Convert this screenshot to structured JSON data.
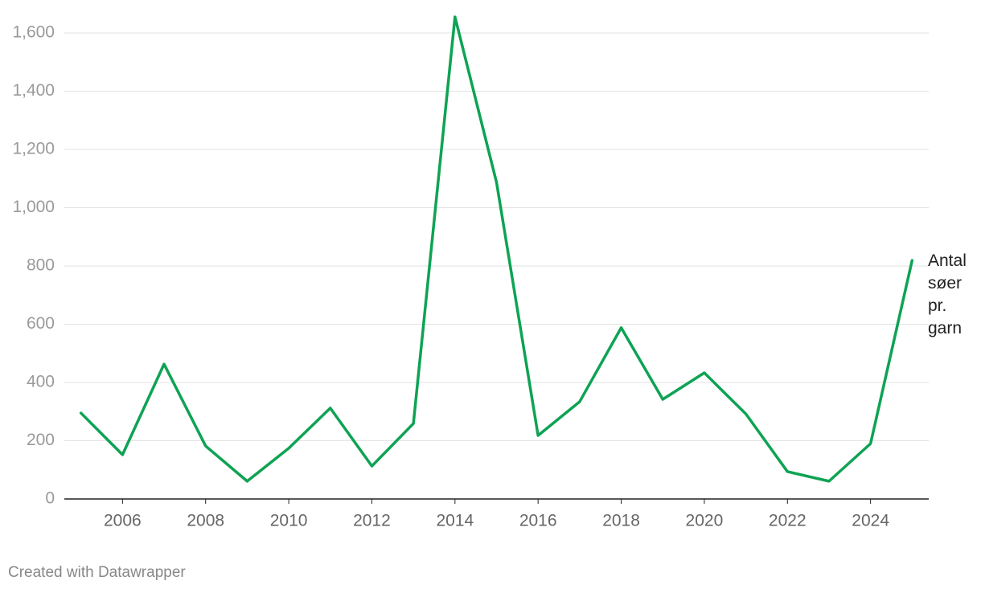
{
  "chart_data": {
    "type": "line",
    "x": [
      2005,
      2006,
      2007,
      2008,
      2009,
      2010,
      2011,
      2012,
      2013,
      2014,
      2015,
      2016,
      2017,
      2018,
      2019,
      2020,
      2021,
      2022,
      2023,
      2024,
      2025
    ],
    "series": [
      {
        "name": "Antal søer pr. garn",
        "color": "#0ea354",
        "values": [
          295,
          152,
          463,
          182,
          61,
          174,
          312,
          113,
          259,
          1655,
          1087,
          218,
          334,
          588,
          342,
          433,
          292,
          94,
          61,
          190,
          819
        ]
      }
    ],
    "xlim": [
      2004.6,
      2025.4
    ],
    "xticks": [
      2006,
      2008,
      2010,
      2012,
      2014,
      2016,
      2018,
      2020,
      2022,
      2024
    ],
    "ylim": [
      0,
      1660
    ],
    "yticks": [
      0,
      200,
      400,
      600,
      800,
      {
        "value": 1000,
        "label": "1,000"
      },
      {
        "value": 1200,
        "label": "1,200"
      },
      {
        "value": 1400,
        "label": "1,400"
      },
      {
        "value": 1600,
        "label": "1,600"
      }
    ],
    "grid": true,
    "footer": "Created with Datawrapper"
  }
}
